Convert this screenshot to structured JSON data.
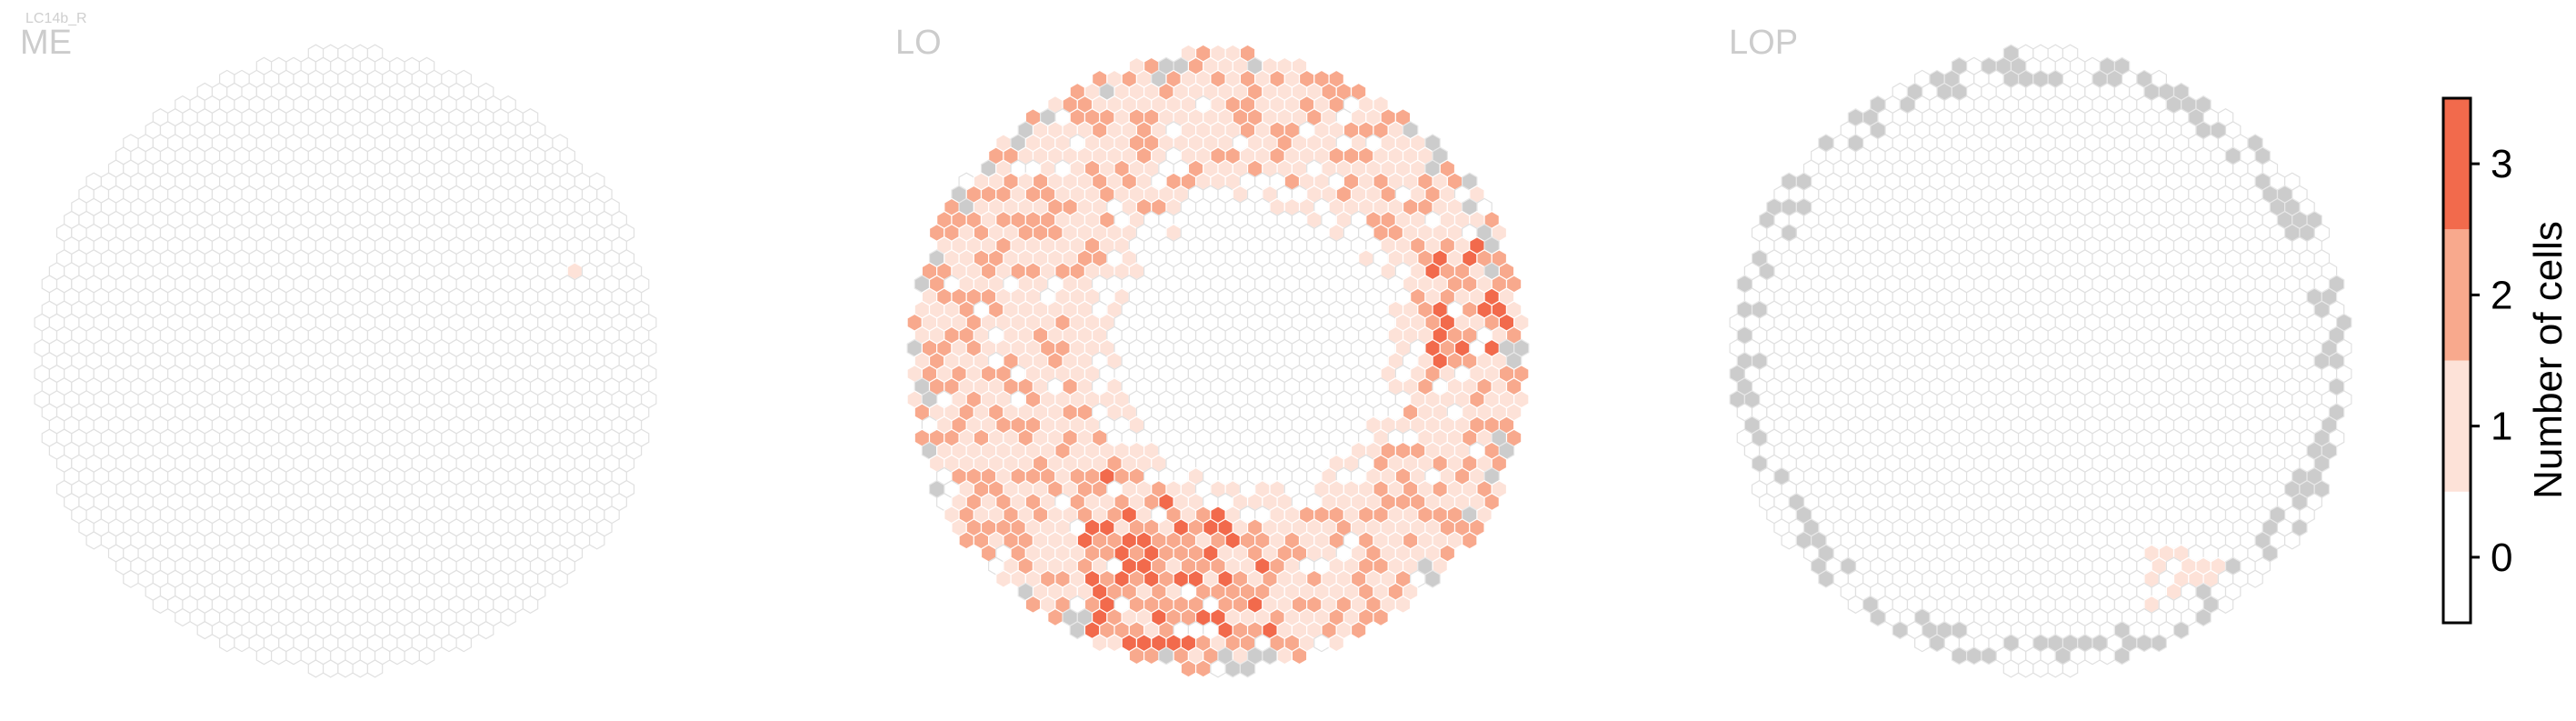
{
  "figure": {
    "cell_type_label": "LC14b_R",
    "panel_titles": [
      "ME",
      "LO",
      "LOP"
    ]
  },
  "colors": {
    "hex_outline": "#e0e0e0",
    "hex_empty": "#ffffff",
    "hex_absent": "#cccccc",
    "level_1": "#fde2d8",
    "level_2": "#f8a98d",
    "level_3": "#f26a4c",
    "colorbar_frame": "#000000"
  },
  "colorbar": {
    "title": "Number of cells",
    "ticks": [
      "0",
      "1",
      "2",
      "3"
    ],
    "bins": [
      {
        "value": 0,
        "color": "#ffffff"
      },
      {
        "value": 1,
        "color": "#fde2d8"
      },
      {
        "value": 2,
        "color": "#f8a98d"
      },
      {
        "value": 3,
        "color": "#f26a4c"
      }
    ]
  },
  "chart_data": [
    {
      "type": "heatmap",
      "title": "ME",
      "layout": "hexagonal eye map (columns)",
      "legend": "colorbar right",
      "value_range": [
        0,
        3
      ],
      "summary": "All columns 0 except one column with 1 cell on the right-upper side",
      "absent_columns": "none",
      "counts": {
        "0": "all other columns",
        "1": 1,
        "2": 0,
        "3": 0
      }
    },
    {
      "type": "heatmap",
      "title": "LO",
      "layout": "hexagonal eye map (columns)",
      "legend": "colorbar right",
      "value_range": [
        0,
        3
      ],
      "summary": "Ring-shaped coverage: center columns 0, periphery mostly 1-2 cells, hotspots of 3 in lower-left/bottom and right edge; some edge columns absent (grey)",
      "absent_columns": "scattered on edge (top, upper-left, left, lower-left, bottom, lower-right)"
    },
    {
      "type": "heatmap",
      "title": "LOP",
      "layout": "hexagonal eye map (columns)",
      "legend": "colorbar right",
      "value_range": [
        0,
        3
      ],
      "summary": "Almost all columns 0; a few columns with 1 cell in lower-right; many edge columns absent (grey)",
      "absent_columns": "many around the rim"
    }
  ]
}
